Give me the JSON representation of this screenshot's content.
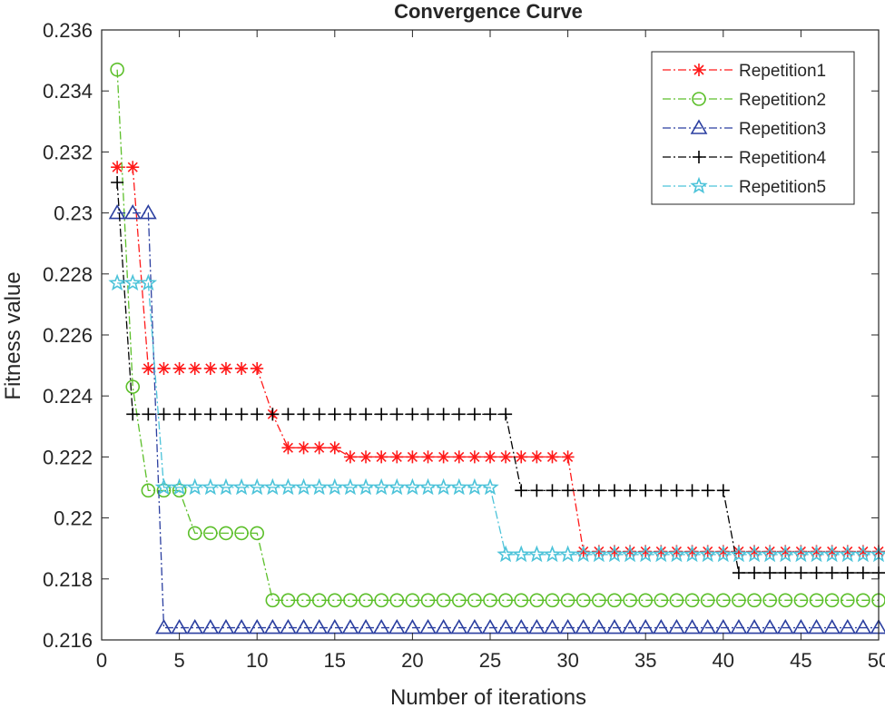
{
  "chart_data": {
    "type": "line",
    "title": "Convergence Curve",
    "xlabel": "Number of iterations",
    "ylabel": "Fitness value",
    "xlim": [
      0,
      50
    ],
    "ylim": [
      0.216,
      0.236
    ],
    "xticks": [
      0,
      5,
      10,
      15,
      20,
      25,
      30,
      35,
      40,
      45,
      50
    ],
    "xtick_labels": [
      "0",
      "5",
      "10",
      "15",
      "20",
      "25",
      "30",
      "35",
      "40",
      "45",
      "50"
    ],
    "yticks": [
      0.216,
      0.218,
      0.22,
      0.222,
      0.224,
      0.226,
      0.228,
      0.23,
      0.232,
      0.234,
      0.236
    ],
    "ytick_labels": [
      "0.216",
      "0.218",
      "0.22",
      "0.222",
      "0.224",
      "0.226",
      "0.228",
      "0.23",
      "0.232",
      "0.234",
      "0.236"
    ],
    "grid": false,
    "legend_position": "top-right",
    "x": [
      1,
      2,
      3,
      4,
      5,
      6,
      7,
      8,
      9,
      10,
      11,
      12,
      13,
      14,
      15,
      16,
      17,
      18,
      19,
      20,
      21,
      22,
      23,
      24,
      25,
      26,
      27,
      28,
      29,
      30,
      31,
      32,
      33,
      34,
      35,
      36,
      37,
      38,
      39,
      40,
      41,
      42,
      43,
      44,
      45,
      46,
      47,
      48,
      49,
      50
    ],
    "series": [
      {
        "name": "Repetition1",
        "color": "#ff1a1a",
        "marker": "asterisk",
        "segments": [
          [
            1,
            2,
            0.2315
          ],
          [
            3,
            10,
            0.2249
          ],
          [
            11,
            11,
            0.2234
          ],
          [
            12,
            15,
            0.2223
          ],
          [
            16,
            30,
            0.222
          ],
          [
            31,
            50,
            0.2189
          ]
        ]
      },
      {
        "name": "Repetition2",
        "color": "#5cbf2a",
        "marker": "circle",
        "segments": [
          [
            1,
            1,
            0.2347
          ],
          [
            2,
            2,
            0.2243
          ],
          [
            3,
            5,
            0.2209
          ],
          [
            6,
            10,
            0.2195
          ],
          [
            11,
            50,
            0.2173
          ]
        ]
      },
      {
        "name": "Repetition3",
        "color": "#2b3fa0",
        "marker": "triangle",
        "segments": [
          [
            1,
            3,
            0.23
          ],
          [
            4,
            50,
            0.2164
          ]
        ]
      },
      {
        "name": "Repetition4",
        "color": "#000000",
        "marker": "plus",
        "segments": [
          [
            1,
            1,
            0.231
          ],
          [
            2,
            26,
            0.2234
          ],
          [
            27,
            40,
            0.2209
          ],
          [
            41,
            50,
            0.2182
          ]
        ]
      },
      {
        "name": "Repetition5",
        "color": "#4cc3d9",
        "marker": "star",
        "segments": [
          [
            1,
            3,
            0.2277
          ],
          [
            4,
            25,
            0.221
          ],
          [
            26,
            50,
            0.2188
          ]
        ]
      }
    ]
  }
}
